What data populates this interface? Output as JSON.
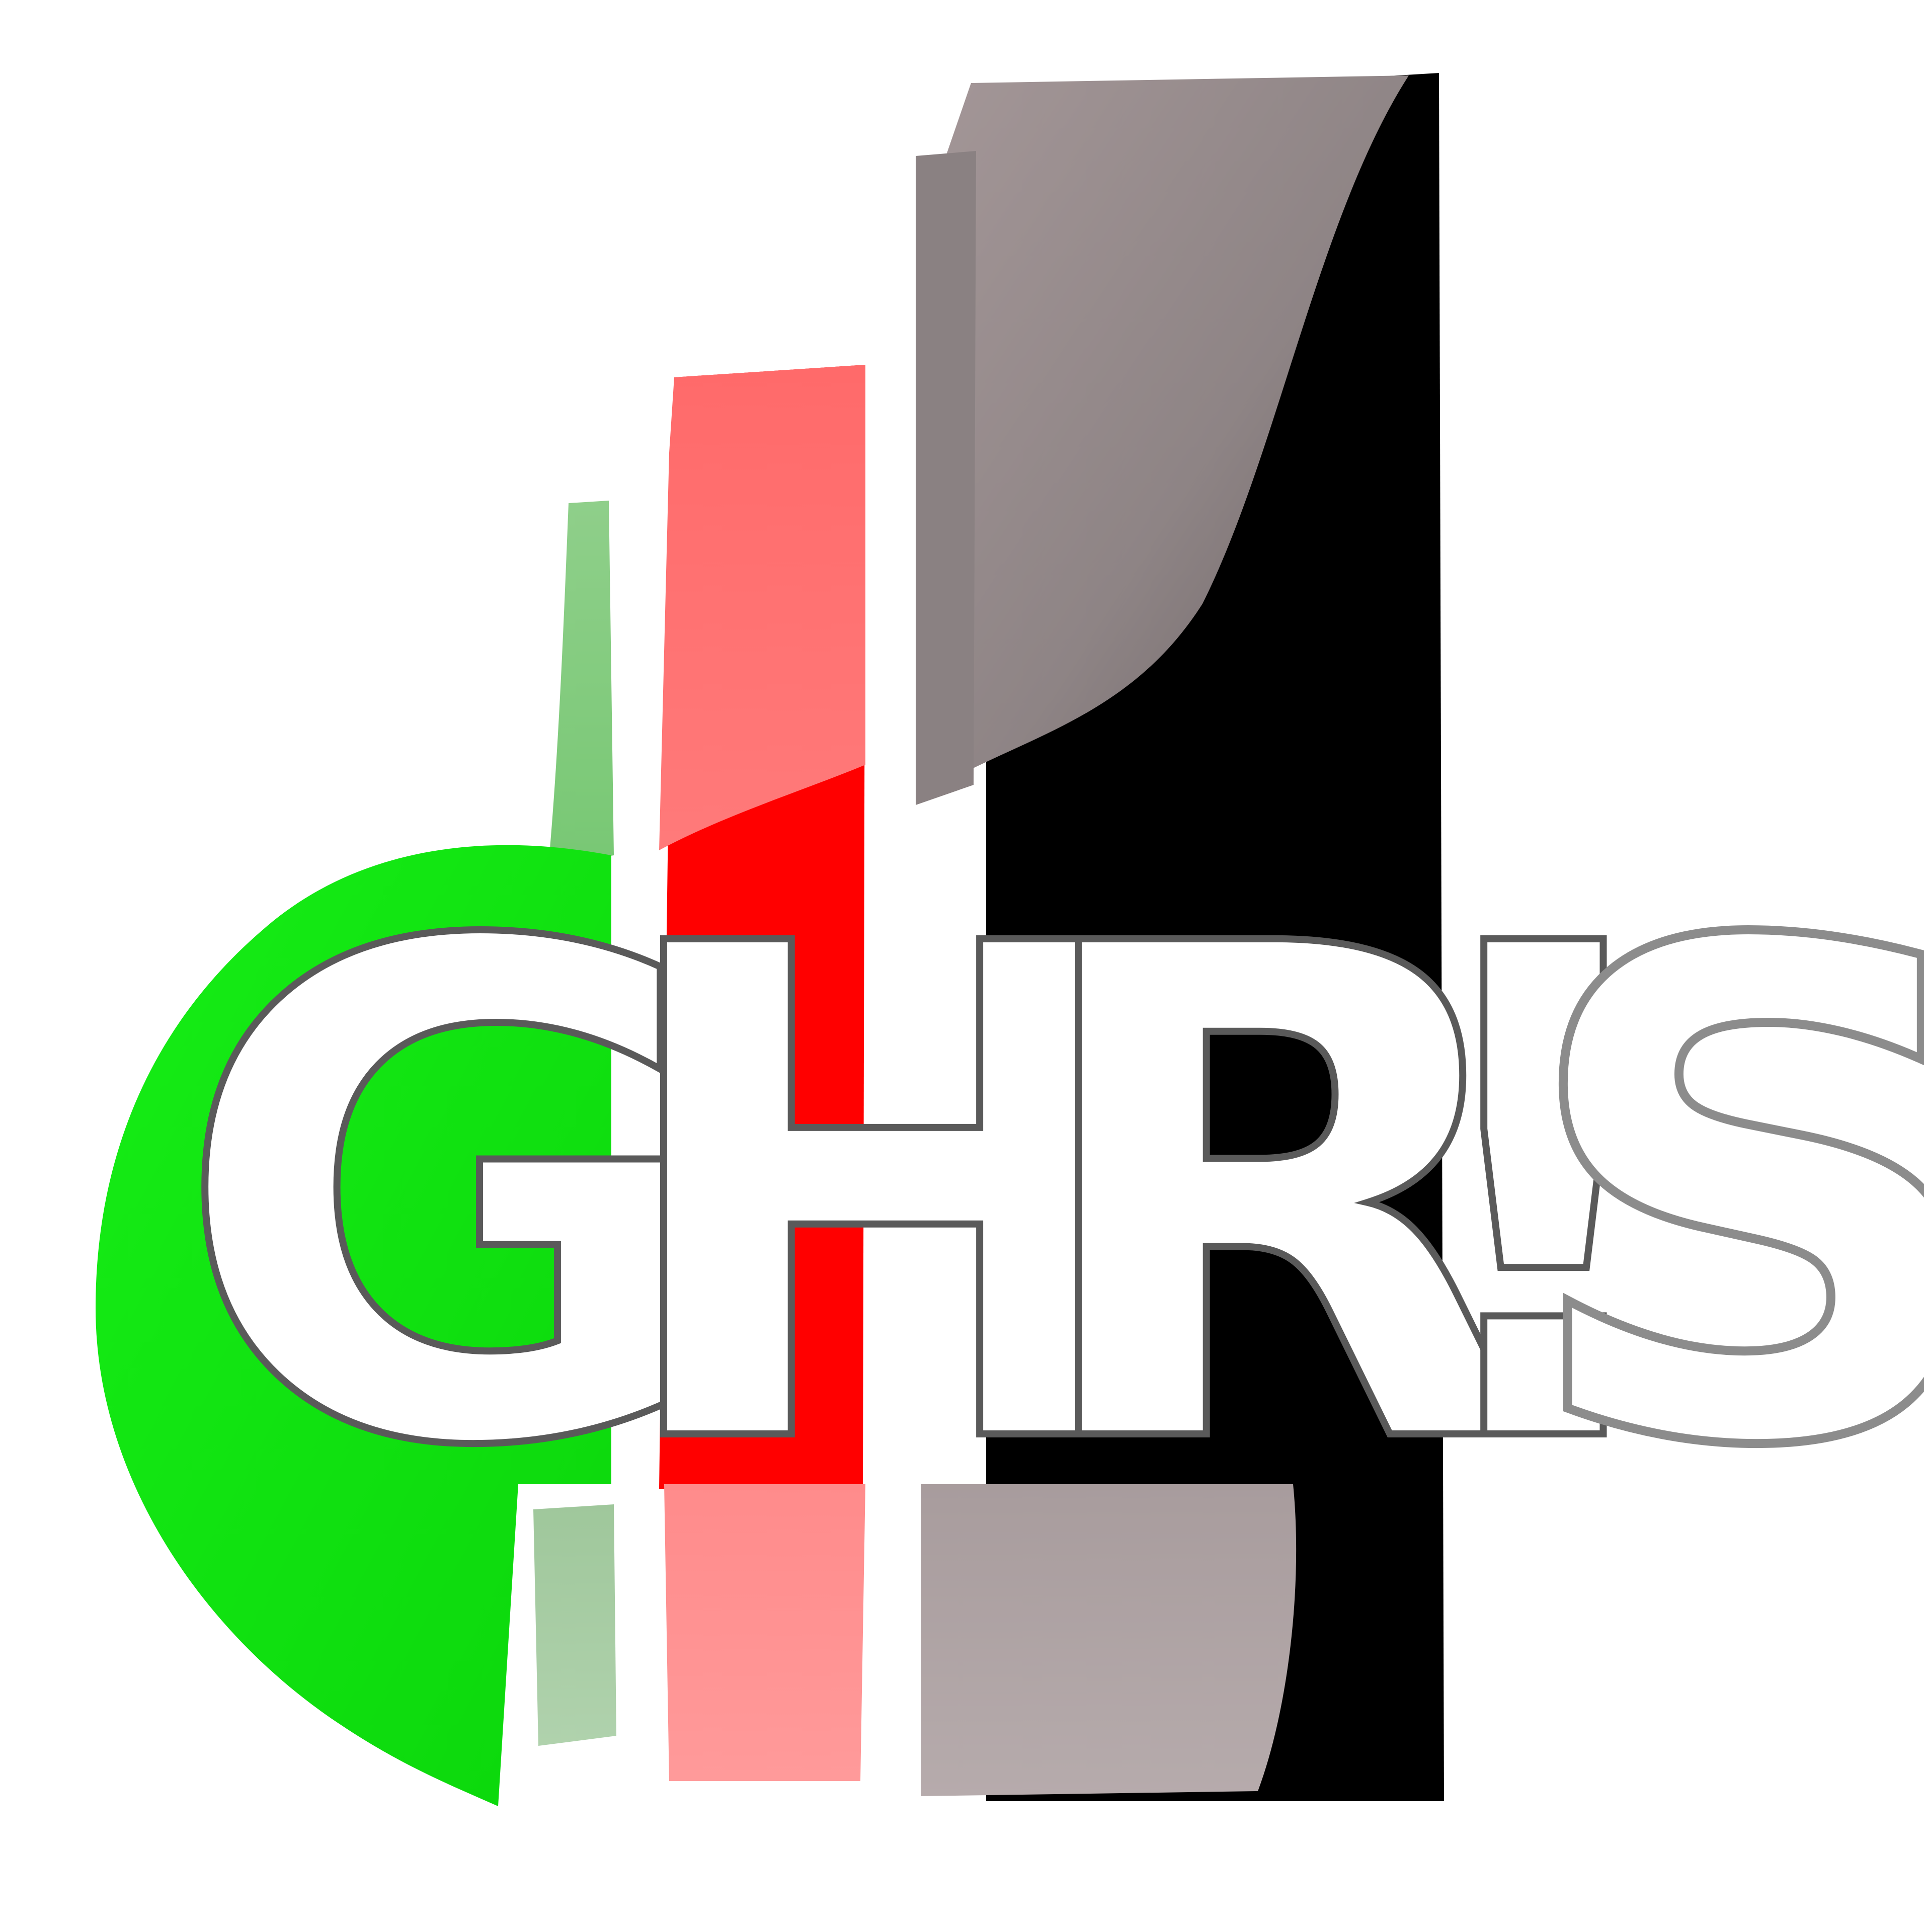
{
  "logo": {
    "wordmark": "GHR!S",
    "letters": [
      "G",
      "H",
      "R",
      "!",
      "S"
    ],
    "colors": {
      "background": "#ffffff",
      "green": "#12e212",
      "green_light": "#8fcf8a",
      "red": "#ff0000",
      "red_light": "#ff7070",
      "black": "#000000",
      "gray": "#9a8f90",
      "letter_fill": "#ffffff",
      "letter_outline": "#8c8c8c"
    }
  }
}
